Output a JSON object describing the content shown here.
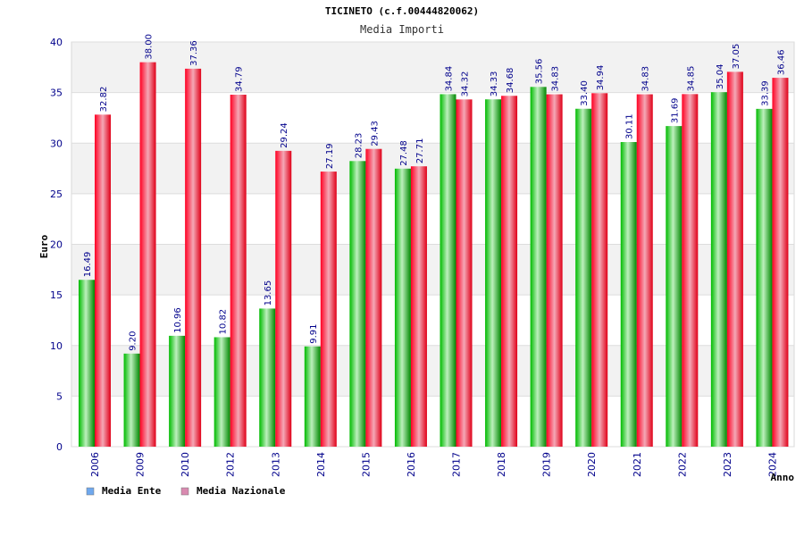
{
  "chart_data": {
    "type": "bar",
    "title": "TICINETO (c.f.00444820062)",
    "subtitle": "Media Importi",
    "xlabel": "Anno",
    "ylabel": "Euro",
    "ylim": [
      0,
      40
    ],
    "yticks": [
      0,
      5,
      10,
      15,
      20,
      25,
      30,
      35,
      40
    ],
    "grid": true,
    "legend_position": "bottom-left",
    "categories": [
      "2006",
      "2009",
      "2010",
      "2012",
      "2013",
      "2014",
      "2015",
      "2016",
      "2017",
      "2018",
      "2019",
      "2020",
      "2021",
      "2022",
      "2023",
      "2024"
    ],
    "series": [
      {
        "name": "Media Ente",
        "color": "#00aa00",
        "legend_color": "#6fa8ee",
        "values": [
          16.49,
          9.2,
          10.96,
          10.82,
          13.65,
          9.91,
          28.23,
          27.48,
          34.84,
          34.33,
          35.56,
          33.4,
          30.11,
          31.69,
          35.04,
          33.39
        ],
        "labels": [
          "16.49",
          "9.20",
          "10.96",
          "10.82",
          "13.65",
          "9.91",
          "28.23",
          "27.48",
          "34.84",
          "34.33",
          "35.56",
          "33.40",
          "30.11",
          "31.69",
          "35.04",
          "33.39"
        ]
      },
      {
        "name": "Media Nazionale",
        "color": "#ee1122",
        "legend_color": "#d98ab0",
        "values": [
          32.82,
          38.0,
          37.36,
          34.79,
          29.24,
          27.19,
          29.43,
          27.71,
          34.32,
          34.68,
          34.83,
          34.94,
          34.83,
          34.85,
          37.05,
          36.46
        ],
        "labels": [
          "32.82",
          "38.00",
          "37.36",
          "34.79",
          "29.24",
          "27.19",
          "29.43",
          "27.71",
          "34.32",
          "34.68",
          "34.83",
          "34.94",
          "34.83",
          "34.85",
          "37.05",
          "36.46"
        ]
      }
    ]
  }
}
